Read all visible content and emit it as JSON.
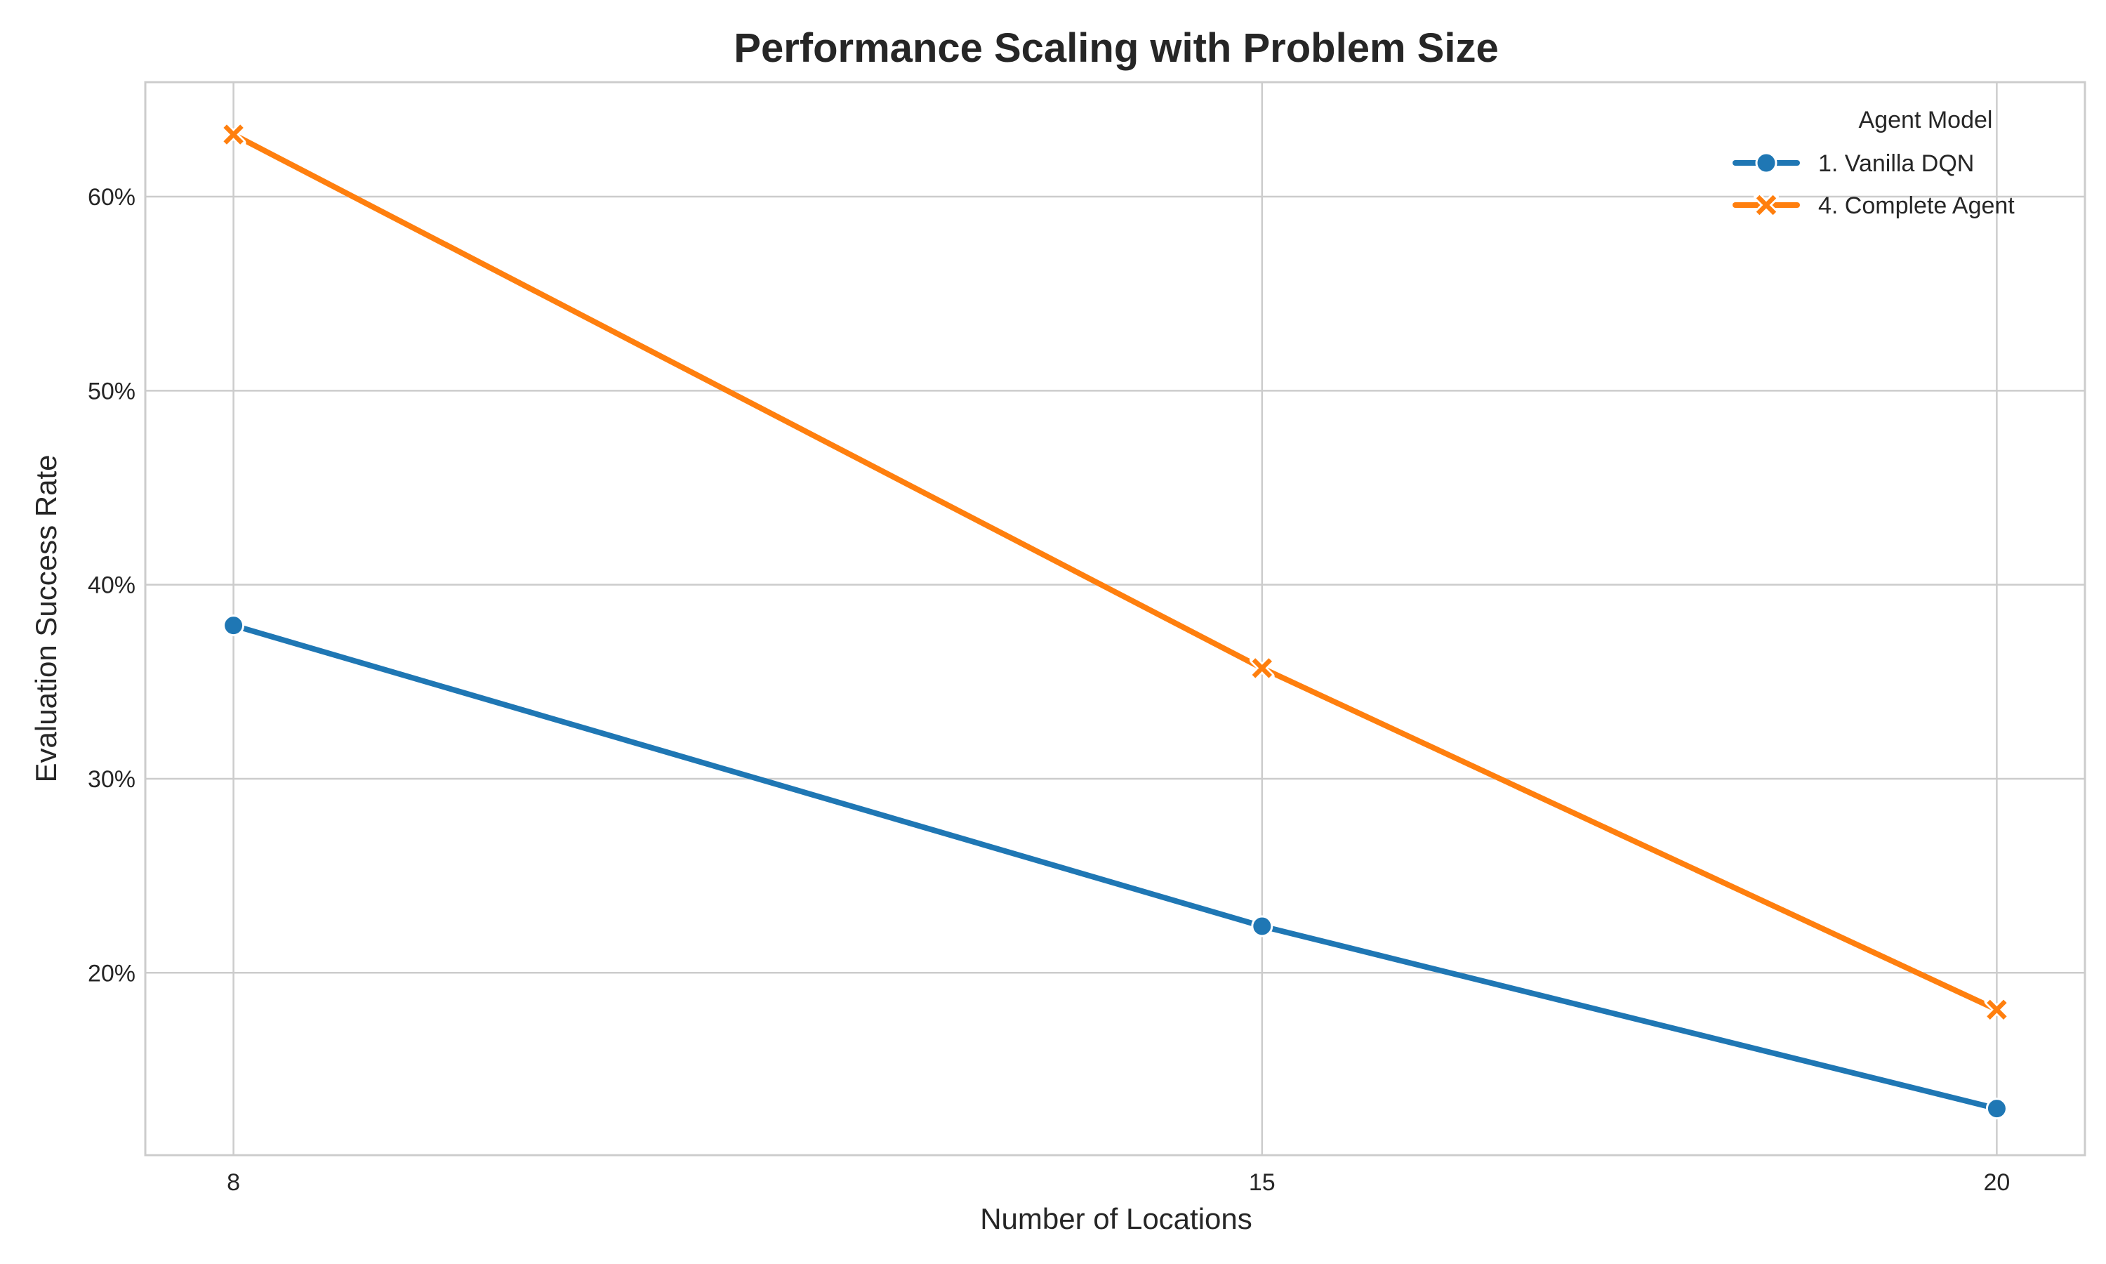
{
  "chart_data": {
    "type": "line",
    "title": "Performance Scaling with Problem Size",
    "xlabel": "Number of Locations",
    "ylabel": "Evaluation Success Rate",
    "x": [
      8,
      15,
      20
    ],
    "x_tick_labels": [
      "8",
      "15",
      "20"
    ],
    "xlim": [
      7.4,
      20.6
    ],
    "ylim": [
      0.106,
      0.659
    ],
    "y_ticks": [
      0.2,
      0.3,
      0.4,
      0.5,
      0.6
    ],
    "y_tick_labels": [
      "20%",
      "30%",
      "40%",
      "50%",
      "60%"
    ],
    "grid": true,
    "legend": {
      "title": "Agent Model",
      "placement": "top-right"
    },
    "series": [
      {
        "name": "1. Vanilla DQN",
        "values": [
          0.379,
          0.224,
          0.13
        ],
        "color": "#1f77b4",
        "marker": "circle"
      },
      {
        "name": "4. Complete Agent",
        "values": [
          0.632,
          0.357,
          0.181
        ],
        "color": "#ff7f0e",
        "marker": "x"
      }
    ]
  }
}
